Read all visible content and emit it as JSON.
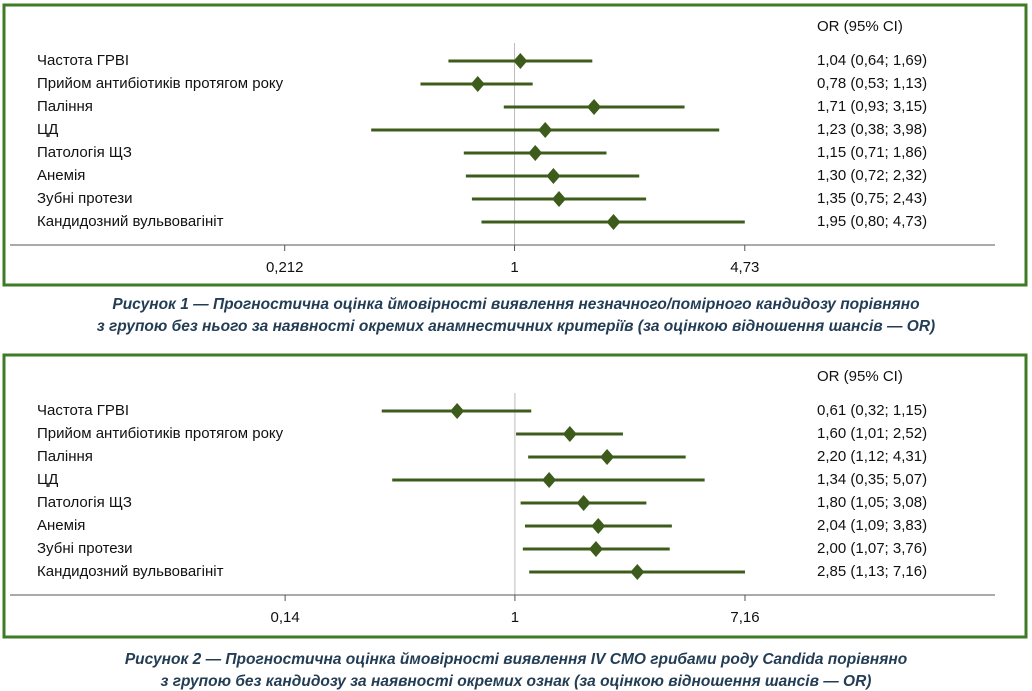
{
  "chart_data": [
    {
      "type": "forest",
      "column_header": "OR (95% CI)",
      "categories": [
        "Частота ГРВІ",
        "Прийом антибіотиків протягом року",
        "Паління",
        "ЦД",
        "Патологія ЩЗ",
        "Анемія",
        "Зубні протези",
        "Кандидозний вульвовагініт"
      ],
      "values": [
        1.04,
        0.78,
        1.71,
        1.23,
        1.15,
        1.3,
        1.35,
        1.95
      ],
      "ci_low": [
        0.64,
        0.53,
        0.93,
        0.38,
        0.71,
        0.72,
        0.75,
        0.8
      ],
      "ci_high": [
        1.69,
        1.13,
        3.15,
        3.98,
        1.86,
        2.32,
        2.43,
        4.73
      ],
      "value_labels": [
        "1,04 (0,64; 1,69)",
        "0,78 (0,53; 1,13)",
        "1,71 (0,93; 3,15)",
        "1,23 (0,38; 3,98)",
        "1,15 (0,71; 1,86)",
        "1,30 (0,72; 2,32)",
        "1,35 (0,75; 2,43)",
        "1,95 (0,80; 4,73)"
      ],
      "log_x": true,
      "xlim": [
        0.0332,
        25.6
      ],
      "xticks": [
        {
          "value": 0.212,
          "label": "0,212"
        },
        1,
        {
          "value": 4.73,
          "label": "4,73"
        }
      ],
      "color": "#3d5c1c",
      "caption": [
        "Рисунок 1 — Прогностична оцінка ймовірності виявлення незначного/помірного кандидозу порівняно",
        "з групою без нього за наявності окремих анамнестичних критеріїв (за оцінкою відношення шансів — OR)"
      ]
    },
    {
      "type": "forest",
      "column_header": "OR (95% CI)",
      "categories": [
        "Частота ГРВІ",
        "Прийом антибіотиків протягом року",
        "Паління",
        "ЦД",
        "Патологія ЩЗ",
        "Анемія",
        "Зубні протези",
        "Кандидозний вульвовагініт"
      ],
      "values": [
        0.61,
        1.6,
        2.2,
        1.34,
        1.8,
        2.04,
        2.0,
        2.85
      ],
      "ci_low": [
        0.32,
        1.01,
        1.12,
        0.35,
        1.05,
        1.09,
        1.07,
        1.13
      ],
      "ci_high": [
        1.15,
        2.52,
        4.31,
        5.07,
        3.08,
        3.83,
        3.76,
        7.16
      ],
      "value_labels": [
        "0,61 (0,32; 1,15)",
        "1,60 (1,01; 2,52)",
        "2,20 (1,12; 4,31)",
        "1,34 (0,35; 5,07)",
        "1,80 (1,05; 3,08)",
        "2,04 (1,09; 3,83)",
        "2,00 (1,07; 3,76)",
        "2,85 (1,13; 7,16)"
      ],
      "log_x": true,
      "xlim": [
        0.0133,
        60.8
      ],
      "xticks": [
        {
          "value": 0.14,
          "label": "0,14"
        },
        1,
        {
          "value": 7.16,
          "label": "7,16"
        }
      ],
      "color": "#3d5c1c",
      "caption": [
        "Рисунок 2 — Прогностична оцінка ймовірності виявлення IV СМО грибами роду Candida порівняно",
        "з групою без кандидозу за наявності окремих ознак (за оцінкою відношення шансів — OR)"
      ]
    }
  ]
}
